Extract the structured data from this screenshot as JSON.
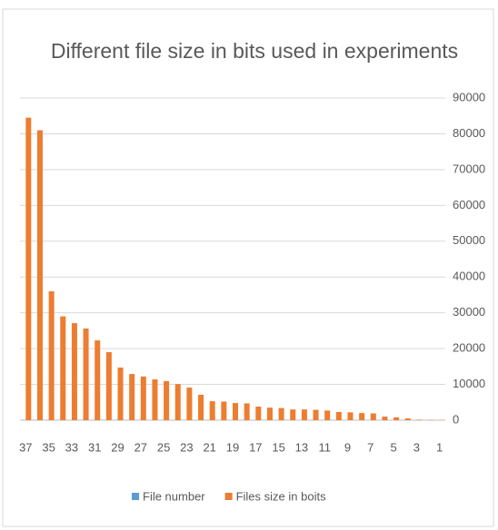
{
  "chart_data": {
    "type": "bar",
    "title": "Different file size in bits used in experiments",
    "categories": [
      37,
      null,
      35,
      null,
      33,
      null,
      31,
      null,
      29,
      null,
      27,
      null,
      25,
      null,
      23,
      null,
      21,
      null,
      19,
      null,
      17,
      null,
      15,
      null,
      13,
      null,
      11,
      null,
      9,
      null,
      7,
      null,
      5,
      null,
      3,
      null,
      1
    ],
    "series": [
      {
        "name": "File number",
        "color": "#5b9bd5",
        "values": [
          37,
          36,
          35,
          34,
          33,
          32,
          31,
          30,
          29,
          28,
          27,
          26,
          25,
          24,
          23,
          22,
          21,
          20,
          19,
          18,
          17,
          16,
          15,
          14,
          13,
          12,
          11,
          10,
          9,
          8,
          7,
          6,
          5,
          4,
          3,
          2,
          1
        ]
      },
      {
        "name": "Files size in boits",
        "color": "#ed7d31",
        "values": [
          84500,
          81000,
          36000,
          29000,
          27100,
          25600,
          22300,
          19000,
          14700,
          12900,
          12200,
          11400,
          10900,
          10100,
          9100,
          7100,
          5300,
          5200,
          4800,
          4700,
          3800,
          3500,
          3400,
          3000,
          3000,
          2900,
          2700,
          2300,
          2200,
          2000,
          1900,
          1000,
          800,
          500,
          150,
          80,
          40
        ]
      }
    ],
    "ylim": [
      0,
      90000
    ],
    "yticks": [
      0,
      10000,
      20000,
      30000,
      40000,
      50000,
      60000,
      70000,
      80000,
      90000
    ],
    "y_axis_side": "right",
    "grid": true,
    "legend": "bottom"
  }
}
